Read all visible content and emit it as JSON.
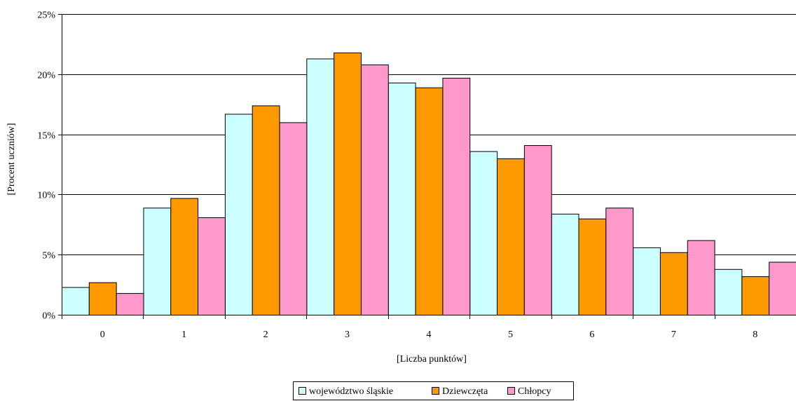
{
  "chart_data": {
    "type": "bar",
    "xlabel": "[Liczba punktów]",
    "ylabel": "[Procent uczniów]",
    "categories": [
      "0",
      "1",
      "2",
      "3",
      "4",
      "5",
      "6",
      "7",
      "8"
    ],
    "ylim": [
      0,
      25
    ],
    "yticks": [
      0,
      5,
      10,
      15,
      20,
      25
    ],
    "ytick_labels": [
      "0%",
      "5%",
      "10%",
      "15%",
      "20%",
      "25%"
    ],
    "grid": true,
    "legend_position": "bottom-center",
    "series": [
      {
        "name": "województwo śląskie",
        "color": "#ccffff",
        "values": [
          2.3,
          8.9,
          16.7,
          21.3,
          19.3,
          13.6,
          8.4,
          5.6,
          3.8
        ]
      },
      {
        "name": "Dziewczęta",
        "color": "#ff9900",
        "values": [
          2.7,
          9.7,
          17.4,
          21.8,
          18.9,
          13.0,
          8.0,
          5.2,
          3.2
        ]
      },
      {
        "name": "Chłopcy",
        "color": "#ff99cc",
        "values": [
          1.8,
          8.1,
          16.0,
          20.8,
          19.7,
          14.1,
          8.9,
          6.2,
          4.4
        ]
      }
    ]
  }
}
